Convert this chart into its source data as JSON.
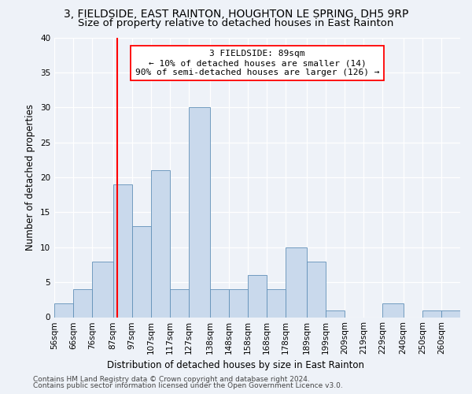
{
  "title1": "3, FIELDSIDE, EAST RAINTON, HOUGHTON LE SPRING, DH5 9RP",
  "title2": "Size of property relative to detached houses in East Rainton",
  "xlabel": "Distribution of detached houses by size in East Rainton",
  "ylabel": "Number of detached properties",
  "bar_color": "#c9d9ec",
  "bar_edge_color": "#6090b8",
  "vline_x": 89,
  "vline_color": "red",
  "annotation_line1": "3 FIELDSIDE: 89sqm",
  "annotation_line2": "← 10% of detached houses are smaller (14)",
  "annotation_line3": "90% of semi-detached houses are larger (126) →",
  "annotation_box_color": "white",
  "annotation_box_edge": "red",
  "categories": [
    "56sqm",
    "66sqm",
    "76sqm",
    "87sqm",
    "97sqm",
    "107sqm",
    "117sqm",
    "127sqm",
    "138sqm",
    "148sqm",
    "158sqm",
    "168sqm",
    "178sqm",
    "189sqm",
    "199sqm",
    "209sqm",
    "219sqm",
    "229sqm",
    "240sqm",
    "250sqm",
    "260sqm"
  ],
  "bin_edges": [
    56,
    66,
    76,
    87,
    97,
    107,
    117,
    127,
    138,
    148,
    158,
    168,
    178,
    189,
    199,
    209,
    219,
    229,
    240,
    250,
    260,
    270
  ],
  "values": [
    2,
    4,
    8,
    19,
    13,
    21,
    4,
    30,
    4,
    4,
    6,
    4,
    10,
    8,
    1,
    0,
    0,
    2,
    0,
    1,
    1
  ],
  "ylim": [
    0,
    40
  ],
  "yticks": [
    0,
    5,
    10,
    15,
    20,
    25,
    30,
    35,
    40
  ],
  "footer1": "Contains HM Land Registry data © Crown copyright and database right 2024.",
  "footer2": "Contains public sector information licensed under the Open Government Licence v3.0.",
  "background_color": "#eef2f8",
  "grid_color": "white",
  "title1_fontsize": 10,
  "title2_fontsize": 9.5,
  "axis_label_fontsize": 8.5,
  "tick_fontsize": 7.5,
  "footer_fontsize": 6.5,
  "annotation_fontsize": 8
}
